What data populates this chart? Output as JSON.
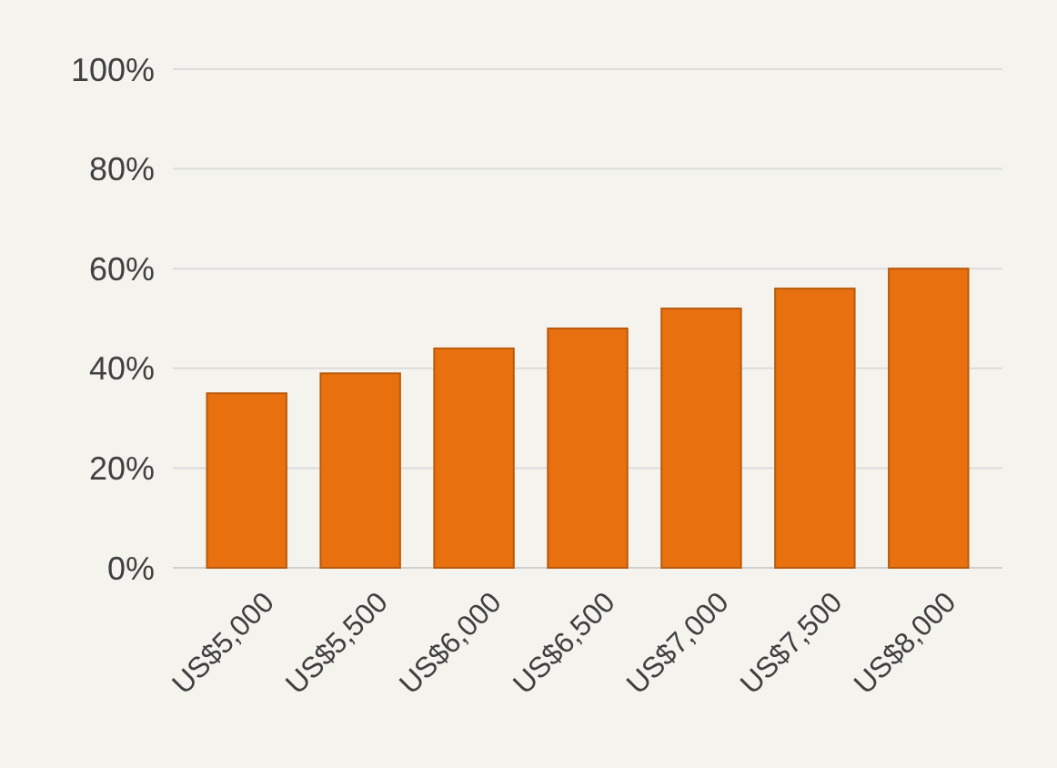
{
  "chart_data": {
    "type": "bar",
    "categories": [
      "US$5,000",
      "US$5,500",
      "US$6,000",
      "US$6,500",
      "US$7,000",
      "US$7,500",
      "US$8,000"
    ],
    "values": [
      35,
      39,
      44,
      48,
      52,
      56,
      60
    ],
    "color": "#e8700f",
    "ylim": [
      0,
      100
    ],
    "yticks": [
      {
        "value": 0,
        "label": "0%"
      },
      {
        "value": 20,
        "label": "20%"
      },
      {
        "value": 40,
        "label": "40%"
      },
      {
        "value": 60,
        "label": "60%"
      },
      {
        "value": 80,
        "label": "80%"
      },
      {
        "value": 100,
        "label": "100%"
      }
    ],
    "grid": "y"
  }
}
